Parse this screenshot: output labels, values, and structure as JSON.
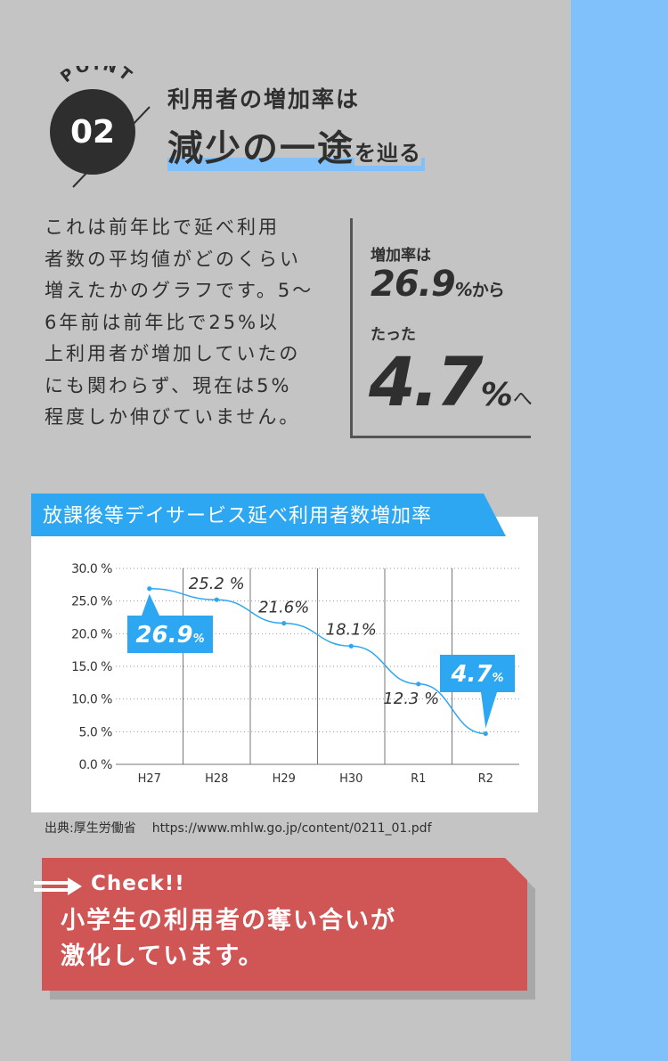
{
  "point": {
    "word": "POINT",
    "number": "02"
  },
  "heading": {
    "line1": "利用者の増加率は",
    "line2_main": "減少の一途",
    "line2_suffix": "を辿る"
  },
  "body_text": "これは前年比で延べ利用\n者数の平均値がどのくらい\n増えたかのグラフです。5～\n6年前は前年比で25%以\n上利用者が増加していたの\nにも関わらず、現在は5%\n程度しか伸びていません。",
  "stats": {
    "label1": "増加率は",
    "from_value": "26.9",
    "from_pct": "%",
    "from_suffix": "から",
    "label2": "たった",
    "to_value": "4.7",
    "to_pct": "%",
    "to_suffix": "へ"
  },
  "chart_data": {
    "type": "line",
    "title": "放課後等デイサービス延べ利用者数増加率",
    "categories": [
      "H27",
      "H28",
      "H29",
      "H30",
      "R1",
      "R2"
    ],
    "values": [
      26.9,
      25.2,
      21.6,
      18.1,
      12.3,
      4.7
    ],
    "data_labels": [
      "26.9%",
      "25.2 %",
      "21.6%",
      "18.1%",
      "12.3 %",
      "4.7%"
    ],
    "y_ticks": [
      "0.0 %",
      "5.0 %",
      "10.0 %",
      "15.0 %",
      "20.0 %",
      "25.0 %",
      "30.0 %"
    ],
    "ylim": [
      0,
      30
    ],
    "grid": true,
    "legend": "none",
    "colors": {
      "line": "#2ea7f2",
      "callout": "#2ea7f2"
    }
  },
  "source": {
    "label": "出典:厚生労働省",
    "url": "https://www.mhlw.go.jp/content/0211_01.pdf"
  },
  "check": {
    "label": "Check!!",
    "text": "小学生の利用者の奪い合いが\n激化しています。"
  },
  "colors": {
    "background": "#c4c4c4",
    "accent_blue": "#80c1fb",
    "check_red": "#d05656",
    "dark": "#2e2e2e"
  }
}
